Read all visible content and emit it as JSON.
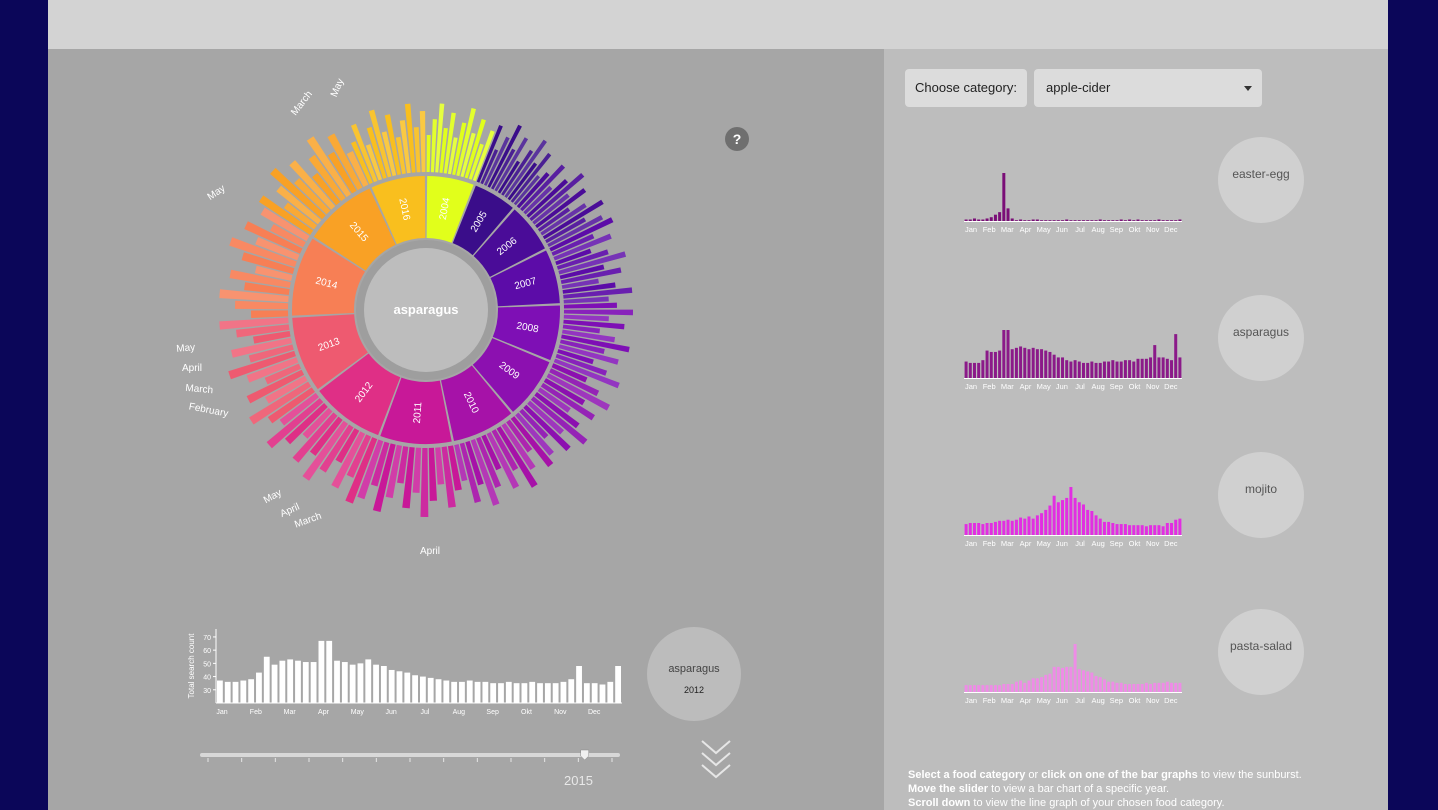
{
  "sunburst": {
    "center_label": "asparagus",
    "years": [
      "2004",
      "2005",
      "2006",
      "2007",
      "2008",
      "2009",
      "2010",
      "2011",
      "2012",
      "2013",
      "2014",
      "2015",
      "2016"
    ],
    "year_weights": [
      0.48,
      0.44,
      0.5,
      0.55,
      0.56,
      0.62,
      0.64,
      0.72,
      0.74,
      0.76,
      0.8,
      0.74,
      0.55
    ],
    "year_colors": [
      "#e1ff1b",
      "#3a0d8a",
      "#4a0c98",
      "#5c0ca8",
      "#7e0fb5",
      "#8c10b0",
      "#a612a8",
      "#c81898",
      "#df2f86",
      "#ee5a70",
      "#f77f55",
      "#f9a125",
      "#f9bf1e"
    ],
    "outer_labels": [
      {
        "text": "May",
        "angle": -74
      },
      {
        "text": "March",
        "angle": -58
      },
      {
        "text": "May",
        "angle": -38
      },
      {
        "text": "May",
        "angle": -6
      },
      {
        "text": "April",
        "angle": 0
      },
      {
        "text": "March",
        "angle": 6
      },
      {
        "text": "February",
        "angle": 12
      },
      {
        "text": "May",
        "angle": -32
      },
      {
        "text": "April",
        "angle": -27
      },
      {
        "text": "March",
        "angle": -22
      },
      {
        "text": "April",
        "angle": 0
      }
    ]
  },
  "help": {
    "label": "?"
  },
  "year_chart": {
    "type": "bar",
    "ylabel": "Total search count",
    "yticks": [
      "70",
      "60",
      "50",
      "40",
      "30"
    ],
    "month_labels": [
      "Jan",
      "Feb",
      "Mar",
      "Apr",
      "May",
      "Jun",
      "Jul",
      "Aug",
      "Sep",
      "Okt",
      "Nov",
      "Dec"
    ],
    "values": [
      37,
      36,
      36,
      37,
      38,
      43,
      55,
      49,
      52,
      53,
      52,
      51,
      51,
      67,
      67,
      52,
      51,
      49,
      50,
      53,
      49,
      48,
      45,
      44,
      43,
      41,
      40,
      39,
      38,
      37,
      36,
      36,
      37,
      36,
      36,
      35,
      35,
      36,
      35,
      35,
      36,
      35,
      35,
      35,
      36,
      38,
      48,
      35,
      35,
      34,
      36,
      48
    ],
    "ylim": [
      20,
      76
    ]
  },
  "year_circle": {
    "name": "asparagus",
    "year": "2012"
  },
  "slider": {
    "year": "2015",
    "value_fraction": 0.92
  },
  "category": {
    "label": "Choose category:",
    "value": "apple-cider"
  },
  "mini_charts": [
    {
      "name": "easter-egg",
      "color": "#7a0e77",
      "values": [
        1,
        1,
        2,
        1,
        1,
        2,
        3,
        5,
        7,
        38,
        10,
        2,
        0,
        1,
        0,
        0,
        1,
        1,
        0,
        0,
        0,
        0,
        0,
        0,
        1,
        0,
        0,
        0,
        0,
        0,
        0,
        0,
        1,
        0,
        0,
        0,
        0,
        1,
        0,
        1,
        0,
        1,
        0,
        0,
        0,
        0,
        1,
        0,
        0,
        0,
        0,
        1
      ]
    },
    {
      "name": "asparagus",
      "color": "#8b1a89",
      "values": [
        12,
        11,
        11,
        11,
        13,
        20,
        19,
        19,
        20,
        35,
        35,
        21,
        22,
        23,
        22,
        21,
        22,
        21,
        21,
        20,
        19,
        17,
        15,
        15,
        13,
        12,
        13,
        12,
        11,
        11,
        12,
        11,
        11,
        12,
        12,
        13,
        12,
        12,
        13,
        13,
        12,
        14,
        14,
        14,
        15,
        24,
        15,
        15,
        14,
        13,
        32,
        15
      ]
    },
    {
      "name": "mojito",
      "color": "#e22ee2",
      "values": [
        10,
        11,
        11,
        11,
        10,
        11,
        11,
        12,
        13,
        13,
        14,
        13,
        14,
        16,
        15,
        17,
        15,
        18,
        20,
        23,
        27,
        36,
        30,
        32,
        34,
        44,
        34,
        30,
        28,
        23,
        22,
        18,
        15,
        12,
        12,
        11,
        10,
        10,
        10,
        9,
        9,
        9,
        9,
        8,
        9,
        9,
        9,
        8,
        11,
        11,
        14,
        15
      ]
    },
    {
      "name": "pasta-salad",
      "color": "#ee8ce6",
      "values": [
        6,
        6,
        6,
        6,
        6,
        6,
        6,
        6,
        6,
        7,
        7,
        7,
        9,
        10,
        8,
        10,
        12,
        12,
        13,
        15,
        16,
        22,
        22,
        21,
        22,
        22,
        42,
        20,
        19,
        18,
        17,
        14,
        13,
        11,
        9,
        9,
        8,
        8,
        7,
        7,
        7,
        7,
        7,
        8,
        7,
        8,
        8,
        8,
        9,
        8,
        8,
        8
      ]
    }
  ],
  "mini_month_labels": [
    "Jan",
    "Feb",
    "Mar",
    "Apr",
    "May",
    "Jun",
    "Jul",
    "Aug",
    "Sep",
    "Okt",
    "Nov",
    "Dec"
  ],
  "instructions": {
    "l1a": "Select a food category",
    "l1b": " or ",
    "l1c": "click on one of the bar graphs",
    "l1d": " to view the sunburst.",
    "l2a": "Move the slider",
    "l2b": " to view a bar chart of a specific year.",
    "l3a": "Scroll down",
    "l3b": " to view the line graph of your chosen food category."
  }
}
